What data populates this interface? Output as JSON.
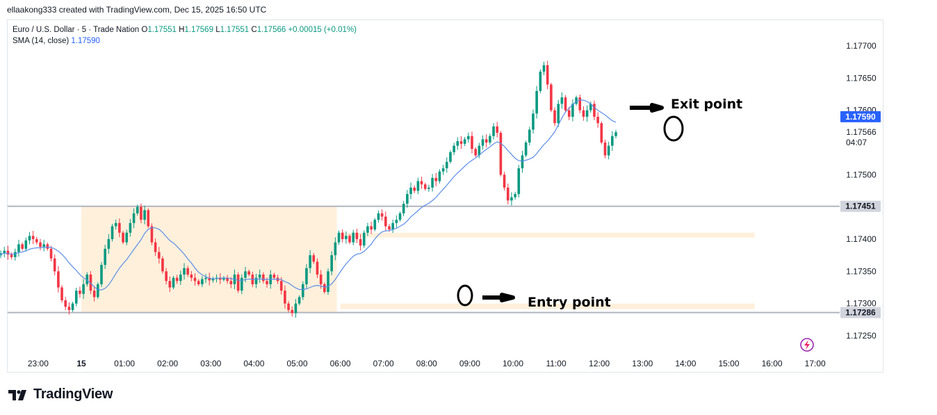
{
  "header": {
    "attribution": "ellaakong333 created with TradingView.com, Dec 15, 2025 16:50 UTC"
  },
  "legend": {
    "symbol": "Euro / U.S. Dollar · 5 · Trade Nation",
    "ohlc": [
      {
        "key": "O",
        "value": "1.17551"
      },
      {
        "key": "H",
        "value": "1.17569"
      },
      {
        "key": "L",
        "value": "1.17551"
      },
      {
        "key": "C",
        "value": "1.17566"
      }
    ],
    "change": "+0.00015 (+0.01%)",
    "sma_label": "SMA (14, close)",
    "sma_value": "1.17590"
  },
  "brand": {
    "name": "TradingView"
  },
  "annotations": {
    "entry": "Entry point",
    "exit": "Exit point"
  },
  "countdown": "04:07",
  "colors": {
    "up": "#089981",
    "down": "#f23645",
    "sma": "#5b8de8",
    "session": "#fff0dc",
    "level_line": "#b2b5be",
    "price_badge_sma": "#2962ff",
    "price_badge_level": "#d1d4dc"
  },
  "chart_data": {
    "type": "candlestick",
    "title": "Euro / U.S. Dollar · 5 · Trade Nation",
    "x_tick_labels": [
      "23:00",
      "15",
      "01:00",
      "02:00",
      "03:00",
      "04:00",
      "05:00",
      "06:00",
      "07:00",
      "08:00",
      "09:00",
      "10:00",
      "11:00",
      "12:00",
      "13:00",
      "14:00",
      "15:00",
      "16:00",
      "17:00"
    ],
    "y_tick_labels": [
      "1.17700",
      "1.17650",
      "1.17600",
      "1.17500",
      "1.17400",
      "1.17350",
      "1.17300",
      "1.17250"
    ],
    "y_range": [
      1.1722,
      1.1772
    ],
    "hour_start": -1.95,
    "bar_minutes": 5,
    "closes": [
      1.17375,
      1.17378,
      1.17382,
      1.17376,
      1.17372,
      1.1738,
      1.17392,
      1.17385,
      1.17398,
      1.17405,
      1.174,
      1.17395,
      1.17388,
      1.17392,
      1.17385,
      1.1737,
      1.1735,
      1.17325,
      1.17305,
      1.17295,
      1.1729,
      1.173,
      1.1732,
      1.17315,
      1.1733,
      1.17345,
      1.1732,
      1.1731,
      1.1733,
      1.1736,
      1.17385,
      1.174,
      1.1742,
      1.17425,
      1.1741,
      1.17395,
      1.1741,
      1.17425,
      1.1744,
      1.1745,
      1.1743,
      1.17445,
      1.1742,
      1.17395,
      1.1738,
      1.1737,
      1.1735,
      1.17335,
      1.17325,
      1.1734,
      1.17335,
      1.17345,
      1.17355,
      1.17345,
      1.1734,
      1.17335,
      1.1733,
      1.17338,
      1.1734,
      1.17336,
      1.17338,
      1.1734,
      1.17337,
      1.1734,
      1.17335,
      1.1733,
      1.17345,
      1.1732,
      1.1734,
      1.1735,
      1.17345,
      1.1733,
      1.1734,
      1.17345,
      1.17335,
      1.1733,
      1.17345,
      1.1734,
      1.17335,
      1.1732,
      1.173,
      1.1729,
      1.17285,
      1.173,
      1.1731,
      1.1733,
      1.17355,
      1.17375,
      1.17365,
      1.17345,
      1.1733,
      1.17318,
      1.1735,
      1.17375,
      1.17395,
      1.1741,
      1.174,
      1.17405,
      1.17395,
      1.1741,
      1.174,
      1.1739,
      1.1741,
      1.1742,
      1.17415,
      1.1743,
      1.1744,
      1.17435,
      1.1742,
      1.17415,
      1.17425,
      1.1743,
      1.1744,
      1.17455,
      1.1747,
      1.1748,
      1.17475,
      1.1749,
      1.17485,
      1.17478,
      1.1748,
      1.17495,
      1.1749,
      1.17505,
      1.1751,
      1.1752,
      1.17535,
      1.17545,
      1.17552,
      1.17548,
      1.17555,
      1.1756,
      1.1754,
      1.1753,
      1.17545,
      1.17555,
      1.1755,
      1.1756,
      1.17575,
      1.17565,
      1.175,
      1.1748,
      1.1746,
      1.17465,
      1.1747,
      1.1751,
      1.1753,
      1.1755,
      1.1757,
      1.17595,
      1.1763,
      1.1766,
      1.1767,
      1.1764,
      1.176,
      1.1758,
      1.1761,
      1.1762,
      1.176,
      1.1759,
      1.1761,
      1.1762,
      1.176,
      1.1759,
      1.176,
      1.1761,
      1.1759,
      1.1758,
      1.1755,
      1.1753,
      1.17545,
      1.1756,
      1.17566
    ]
  }
}
